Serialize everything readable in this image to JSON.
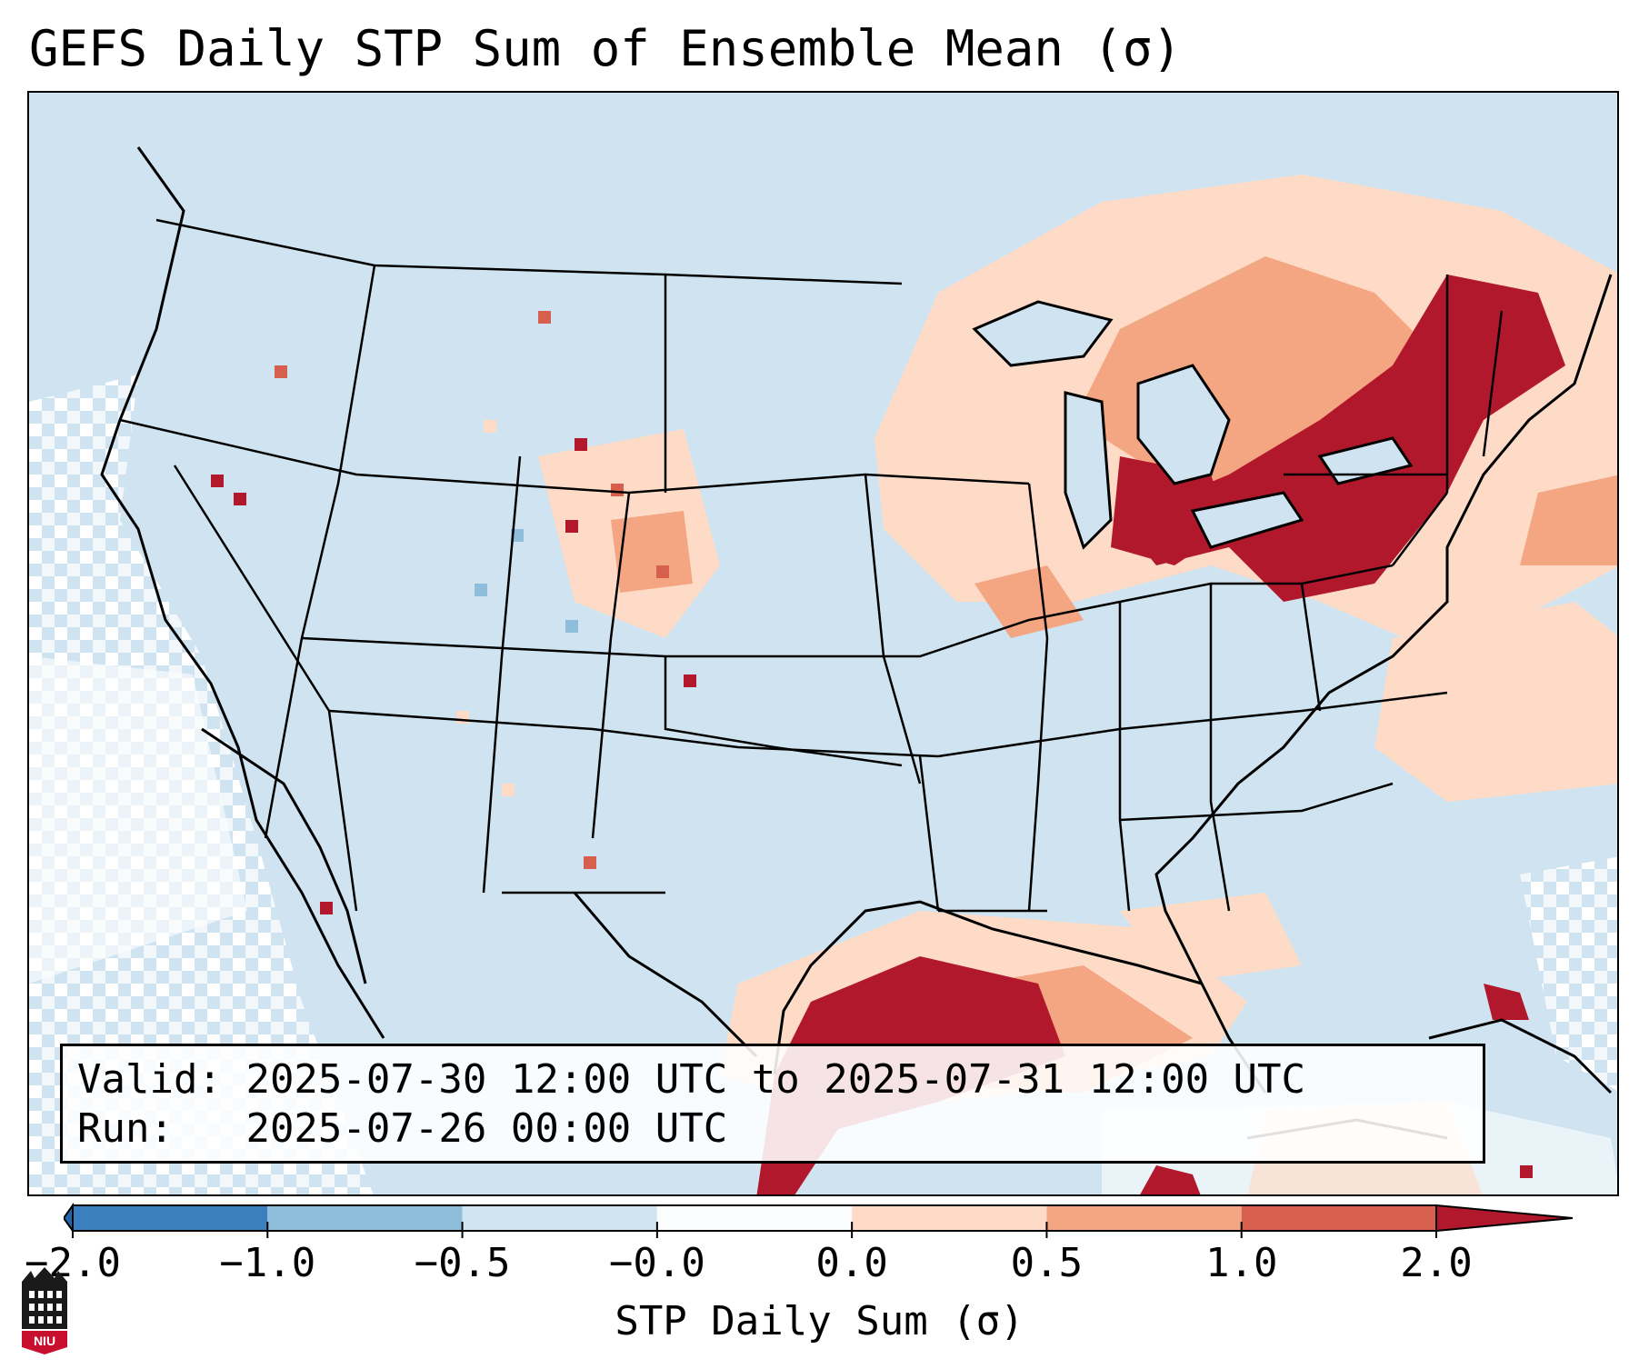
{
  "title": "GEFS Daily STP Sum of Ensemble Mean (σ)",
  "info": {
    "valid_label": "Valid:",
    "valid_value": "2025-07-30 12:00 UTC to 2025-07-31 12:00 UTC",
    "run_label": "Run:",
    "run_value": "2025-07-26 00:00 UTC"
  },
  "colorbar": {
    "label": "STP Daily Sum (σ)",
    "ticks": [
      "−2.0",
      "−1.0",
      "−0.5",
      "−0.0",
      "0.0",
      "0.5",
      "1.0",
      "2.0"
    ],
    "colors": [
      "#3b7fbf",
      "#8fbedd",
      "#d1e5f0",
      "#fbfcfd",
      "#fddbc7",
      "#f4a582",
      "#d6604d",
      "#b2182b"
    ],
    "extend_low_color": "#2166ac",
    "extend_high_color": "#b2182b"
  },
  "logo": {
    "text": "NIU",
    "color": "#c8102e"
  },
  "map": {
    "background_color": "#cfe4f0",
    "ocean_fill_color": "#cfe4f0",
    "region": "Continental United States"
  }
}
